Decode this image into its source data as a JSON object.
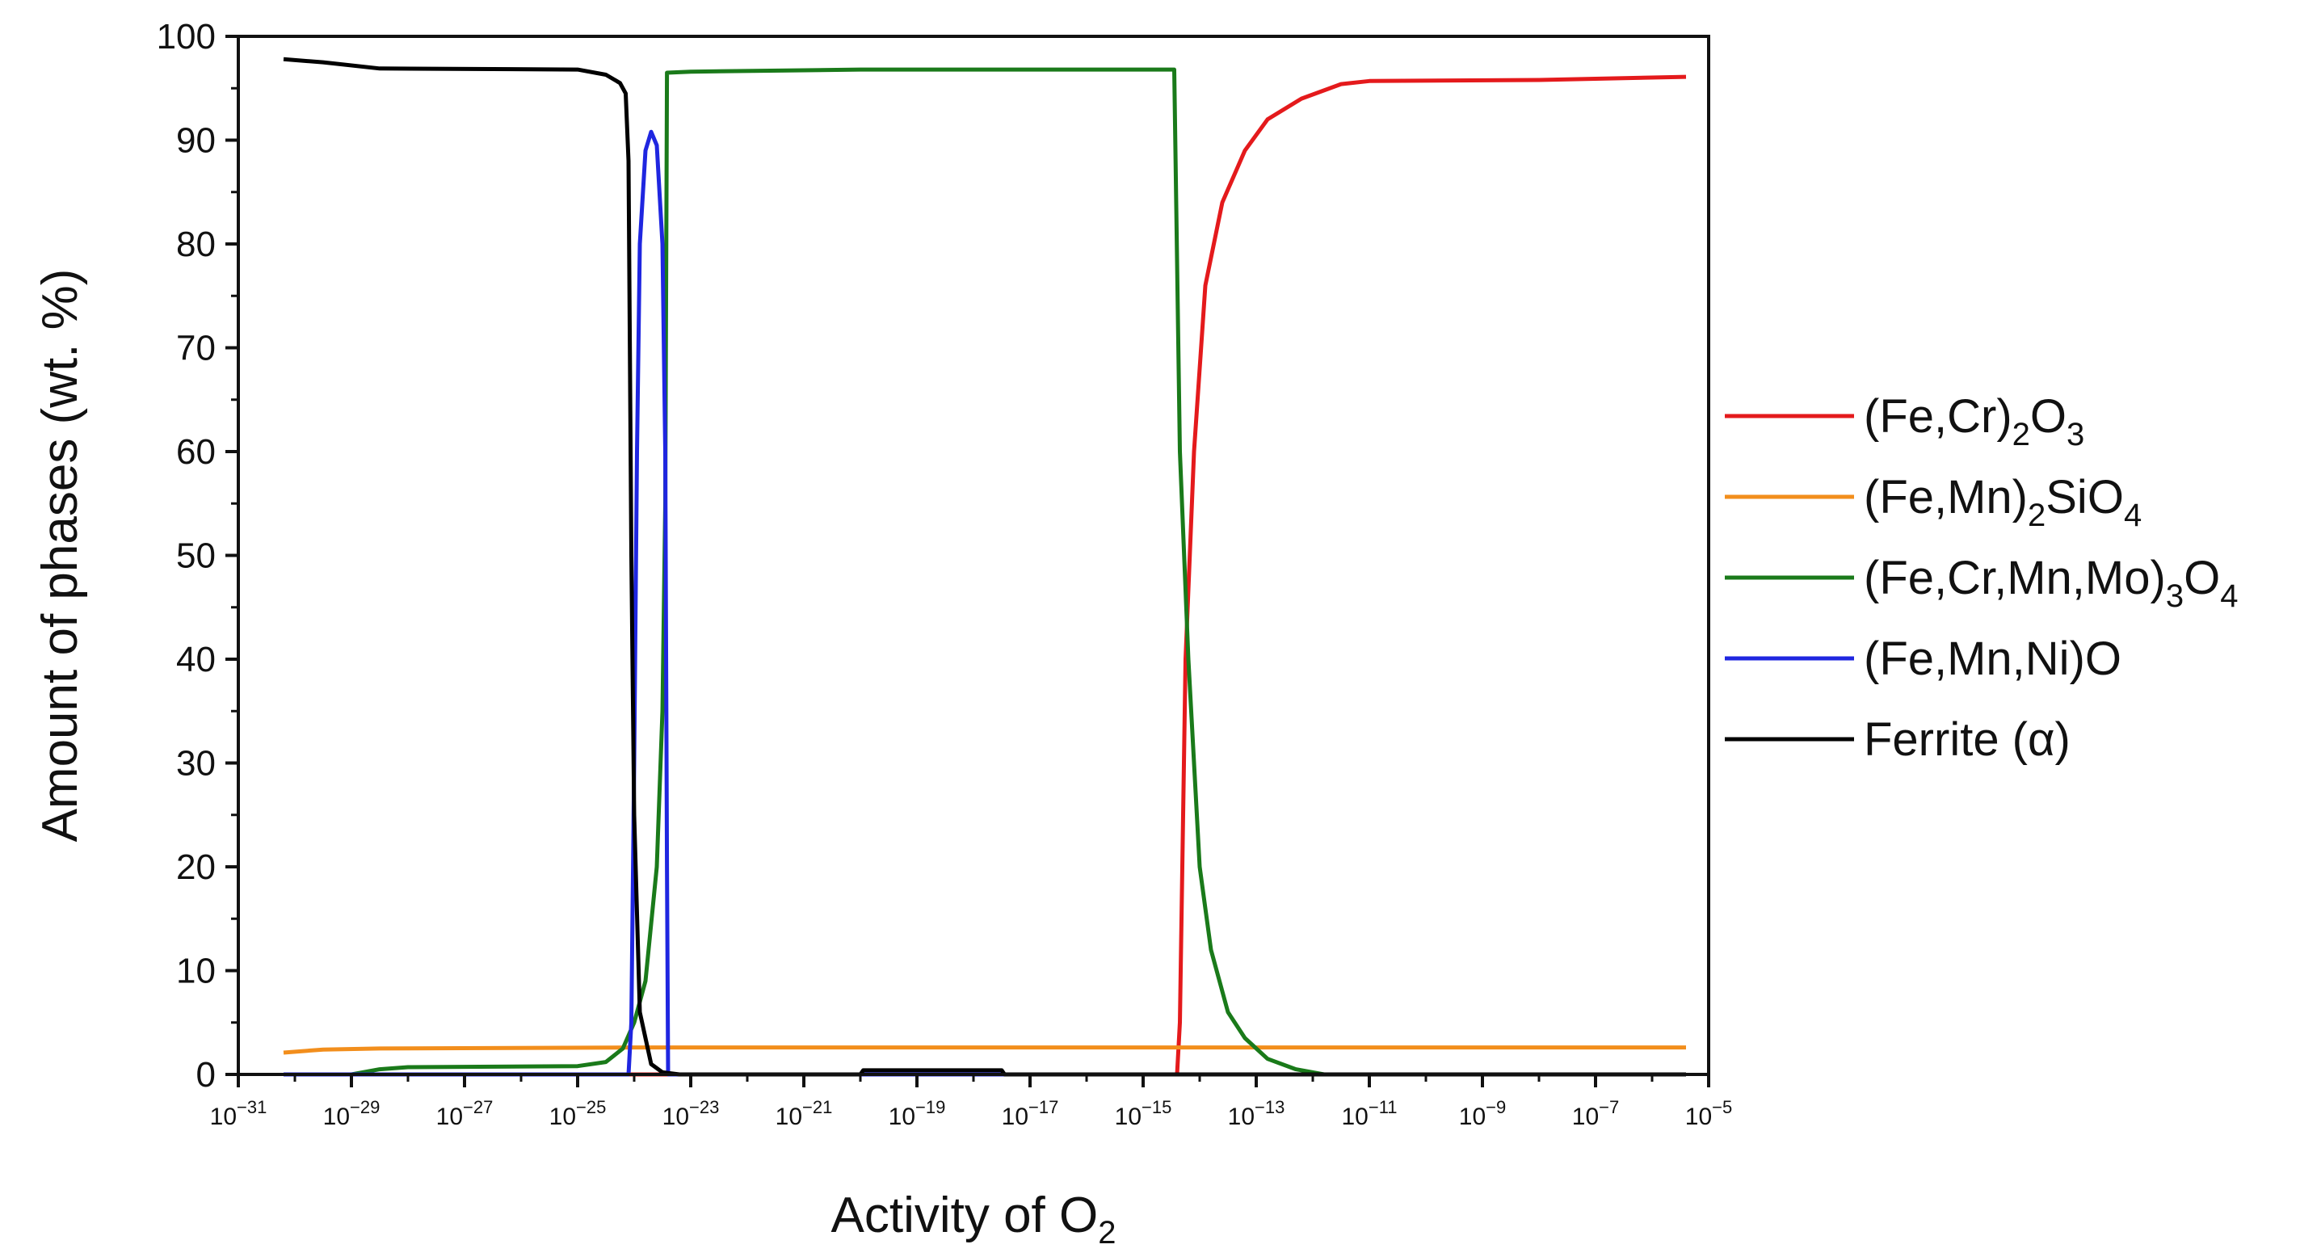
{
  "chart_data": {
    "type": "line",
    "xlabel": "Activity of O",
    "xlabel_sub": "2",
    "ylabel": "Amount of phases (wt. %)",
    "xscale": "log",
    "xlim_exp": [
      -31,
      -5
    ],
    "ylim": [
      0,
      100
    ],
    "x_tick_base": "10",
    "x_tick_exponents": [
      "−31",
      "−29",
      "−27",
      "−25",
      "−23",
      "−21",
      "−19",
      "−17",
      "−15",
      "−13",
      "−11",
      "−9",
      "−7",
      "−5"
    ],
    "y_tick_labels": [
      "0",
      "10",
      "20",
      "30",
      "40",
      "50",
      "60",
      "70",
      "80",
      "90",
      "100"
    ],
    "legend_position": "right",
    "series": [
      {
        "name": "(Fe,Cr)2O3",
        "label_parts": [
          [
            "(Fe,Cr)",
            ""
          ],
          [
            "2",
            "sub"
          ],
          [
            "O",
            ""
          ],
          [
            "3",
            "sub"
          ]
        ],
        "color": "#e41a1c",
        "points": [
          [
            -30.2,
            0
          ],
          [
            -14.4,
            0
          ],
          [
            -14.35,
            5
          ],
          [
            -14.25,
            40
          ],
          [
            -14.1,
            60
          ],
          [
            -13.9,
            76
          ],
          [
            -13.6,
            84
          ],
          [
            -13.2,
            89
          ],
          [
            -12.8,
            92
          ],
          [
            -12.2,
            94
          ],
          [
            -11.5,
            95.4
          ],
          [
            -11,
            95.7
          ],
          [
            -8,
            95.8
          ],
          [
            -5.4,
            96.1
          ]
        ]
      },
      {
        "name": "(Fe,Mn)2SiO4",
        "label_parts": [
          [
            "(Fe,Mn)",
            ""
          ],
          [
            "2",
            "sub"
          ],
          [
            "SiO",
            ""
          ],
          [
            "4",
            "sub"
          ]
        ],
        "color": "#f28e1c",
        "points": [
          [
            -30.2,
            2.1
          ],
          [
            -29.5,
            2.4
          ],
          [
            -28.5,
            2.5
          ],
          [
            -24,
            2.6
          ],
          [
            -23.5,
            2.6
          ],
          [
            -14,
            2.6
          ],
          [
            -5.4,
            2.6
          ]
        ]
      },
      {
        "name": "(Fe,Cr,Mn,Mo)3O4",
        "label_parts": [
          [
            "(Fe,Cr,Mn,Mo)",
            ""
          ],
          [
            "3",
            "sub"
          ],
          [
            "O",
            ""
          ],
          [
            "4",
            "sub"
          ]
        ],
        "color": "#1a7a1a",
        "points": [
          [
            -30.2,
            0
          ],
          [
            -29,
            0
          ],
          [
            -28.5,
            0.5
          ],
          [
            -28,
            0.7
          ],
          [
            -25,
            0.8
          ],
          [
            -24.5,
            1.2
          ],
          [
            -24.2,
            2.5
          ],
          [
            -24.0,
            5
          ],
          [
            -23.8,
            9
          ],
          [
            -23.6,
            20
          ],
          [
            -23.5,
            35
          ],
          [
            -23.45,
            55
          ],
          [
            -23.42,
            96.5
          ],
          [
            -23,
            96.6
          ],
          [
            -20,
            96.8
          ],
          [
            -17,
            96.8
          ],
          [
            -14.45,
            96.8
          ],
          [
            -14.35,
            60
          ],
          [
            -14.2,
            40
          ],
          [
            -14.0,
            20
          ],
          [
            -13.8,
            12
          ],
          [
            -13.5,
            6
          ],
          [
            -13.2,
            3.5
          ],
          [
            -12.8,
            1.5
          ],
          [
            -12.3,
            0.5
          ],
          [
            -11.8,
            0
          ],
          [
            -5.4,
            0
          ]
        ]
      },
      {
        "name": "(Fe,Mn,Ni)O",
        "label_parts": [
          [
            "(Fe,Mn,Ni)O",
            ""
          ]
        ],
        "color": "#1f26e0",
        "points": [
          [
            -30.2,
            0
          ],
          [
            -24.1,
            0
          ],
          [
            -24.05,
            5
          ],
          [
            -24.0,
            30
          ],
          [
            -23.95,
            60
          ],
          [
            -23.9,
            80
          ],
          [
            -23.8,
            89
          ],
          [
            -23.7,
            90.8
          ],
          [
            -23.6,
            89.5
          ],
          [
            -23.5,
            80
          ],
          [
            -23.45,
            60
          ],
          [
            -23.42,
            20
          ],
          [
            -23.4,
            0
          ],
          [
            -5.4,
            0
          ]
        ]
      },
      {
        "name": "Ferrite (α)",
        "label_parts": [
          [
            "Ferrite (",
            ""
          ],
          [
            "α",
            ""
          ],
          [
            ")",
            ""
          ]
        ],
        "color": "#000000",
        "points": [
          [
            -30.2,
            97.8
          ],
          [
            -29.5,
            97.5
          ],
          [
            -28.5,
            96.9
          ],
          [
            -25,
            96.8
          ],
          [
            -24.5,
            96.3
          ],
          [
            -24.25,
            95.5
          ],
          [
            -24.15,
            94.5
          ],
          [
            -24.1,
            88
          ],
          [
            -24.05,
            50
          ],
          [
            -24.0,
            25
          ],
          [
            -23.9,
            6
          ],
          [
            -23.7,
            1
          ],
          [
            -23.5,
            0.2
          ],
          [
            -23.2,
            0
          ],
          [
            -20.0,
            0
          ],
          [
            -19.95,
            0.4
          ],
          [
            -17.5,
            0.4
          ],
          [
            -17.45,
            0
          ],
          [
            -5.4,
            0
          ]
        ]
      }
    ]
  }
}
